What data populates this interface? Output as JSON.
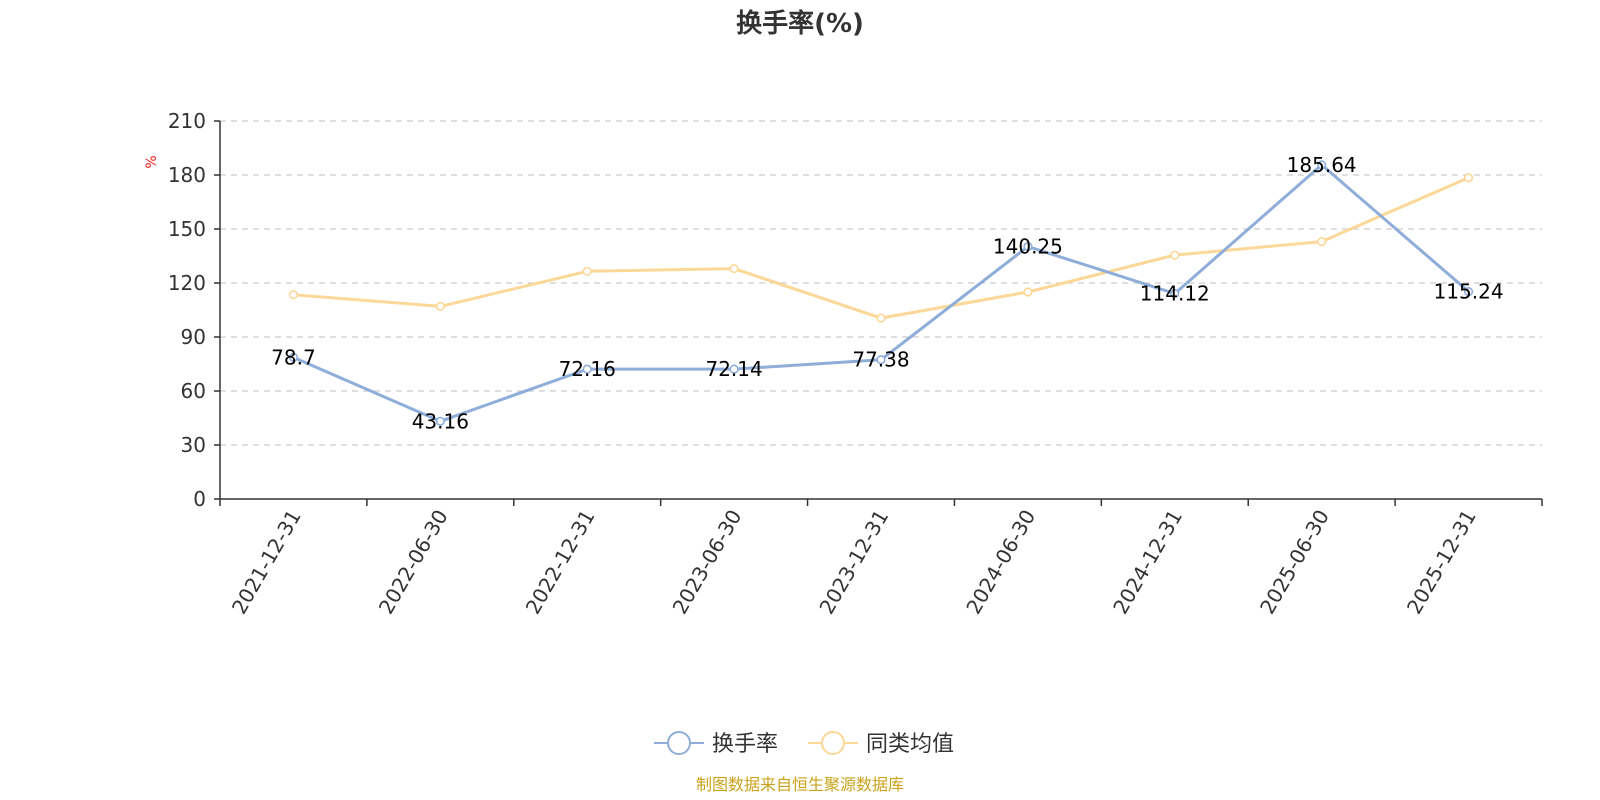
{
  "chart_data": {
    "type": "line",
    "title": "换手率(%)",
    "ylabel": "%",
    "xlabel": "",
    "categories": [
      "2021-12-31",
      "2022-06-30",
      "2022-12-31",
      "2023-06-30",
      "2023-12-31",
      "2024-06-30",
      "2024-12-31",
      "2025-06-30",
      "2025-12-31"
    ],
    "ylim": [
      0,
      210
    ],
    "yticks": [
      0,
      30,
      60,
      90,
      120,
      150,
      180,
      210
    ],
    "grid": true,
    "legend_position": "bottom-center",
    "series": [
      {
        "name": "换手率",
        "color": "#8eaed9",
        "values": [
          78.7,
          43.16,
          72.16,
          72.14,
          77.38,
          140.25,
          114.12,
          185.64,
          115.24
        ],
        "labels": [
          "78.7",
          "43.16",
          "72.16",
          "72.14",
          "77.38",
          "140.25",
          "114.12",
          "185.64",
          "115.24"
        ],
        "show_labels": true
      },
      {
        "name": "同类均值",
        "color": "#fbd898",
        "values": [
          113.5,
          107.0,
          126.5,
          128.0,
          100.5,
          115.0,
          135.5,
          143.0,
          178.5
        ],
        "show_labels": false
      }
    ],
    "source": "制图数据来自恒生聚源数据库",
    "source_color": "#c9a21a",
    "unit_color": "#e02020"
  }
}
